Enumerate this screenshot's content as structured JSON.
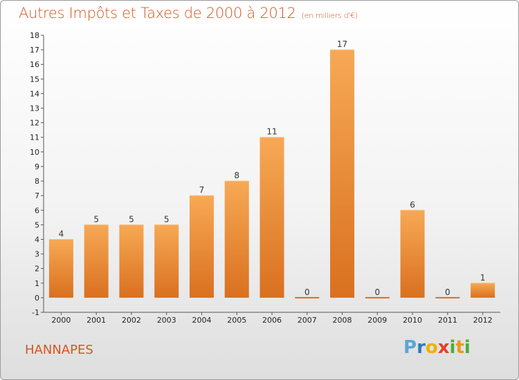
{
  "header": {
    "title": "Autres Impôts et Taxes de 2000 à 2012",
    "subtitle": "(en milliers d'€)"
  },
  "footer": {
    "commune": "HANNAPES",
    "logo": [
      "P",
      "r",
      "o",
      "x",
      "i",
      "t",
      "i"
    ]
  },
  "colors": {
    "accent": "#d4561e",
    "bar_light": "#f7a955",
    "bar_dark": "#d9701f"
  },
  "chart_data": {
    "type": "bar",
    "categories": [
      "2000",
      "2001",
      "2002",
      "2003",
      "2004",
      "2005",
      "2006",
      "2007",
      "2008",
      "2009",
      "2010",
      "2011",
      "2012"
    ],
    "values": [
      4,
      5,
      5,
      5,
      7,
      8,
      11,
      0,
      17,
      0,
      6,
      0,
      1
    ],
    "data_labels": [
      "4",
      "5",
      "5",
      "5",
      "7",
      "8",
      "11",
      "0",
      "17",
      "0",
      "6",
      "0",
      "1"
    ],
    "ylim": [
      -1,
      18
    ],
    "y_ticks": [
      "-1",
      "0",
      "1",
      "2",
      "3",
      "4",
      "5",
      "6",
      "7",
      "8",
      "9",
      "10",
      "11",
      "12",
      "13",
      "14",
      "15",
      "16",
      "17",
      "18"
    ],
    "grid": false,
    "legend": "none"
  }
}
